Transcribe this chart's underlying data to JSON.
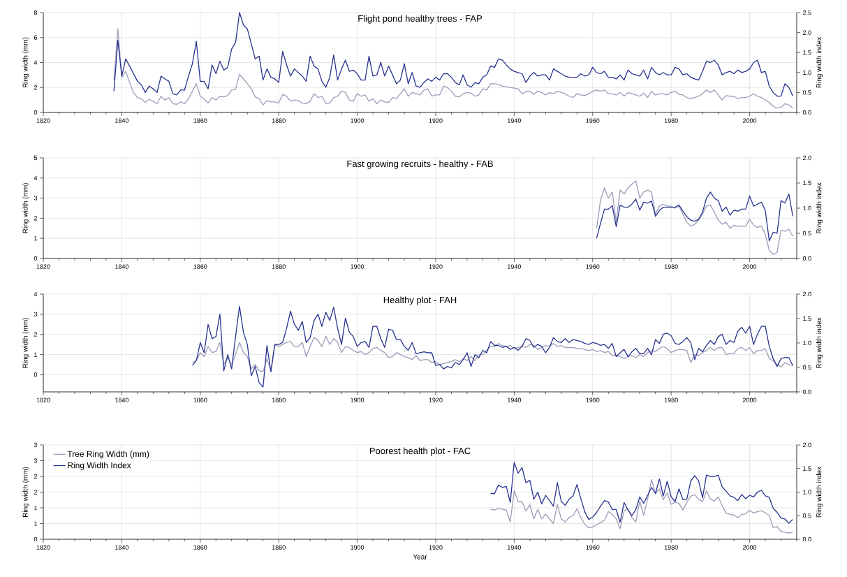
{
  "chart_data": [
    {
      "type": "line",
      "title": "Flight pond healthy trees - FAP",
      "ylabel": "Ring width (mm)",
      "y2label": "Ring width index",
      "grid": true,
      "xlim": [
        1820,
        2012
      ],
      "ylim": [
        0,
        8
      ],
      "y2lim": [
        0,
        2.5
      ],
      "xticks": [
        1820,
        {
          "value": 1824,
          "label": null
        },
        {
          "value": 1828,
          "label": null
        },
        {
          "value": 1832,
          "label": null
        },
        {
          "value": 1836,
          "label": null
        },
        1840,
        {
          "value": 1844,
          "label": null
        },
        {
          "value": 1848,
          "label": null
        },
        {
          "value": 1852,
          "label": null
        },
        {
          "value": 1856,
          "label": null
        },
        1860,
        {
          "value": 1864,
          "label": null
        },
        {
          "value": 1868,
          "label": null
        },
        {
          "value": 1872,
          "label": null
        },
        {
          "value": 1876,
          "label": null
        },
        1880,
        {
          "value": 1884,
          "label": null
        },
        {
          "value": 1888,
          "label": null
        },
        {
          "value": 1892,
          "label": null
        },
        {
          "value": 1896,
          "label": null
        },
        1900,
        {
          "value": 1904,
          "label": null
        },
        {
          "value": 1908,
          "label": null
        },
        {
          "value": 1912,
          "label": null
        },
        {
          "value": 1916,
          "label": null
        },
        1920,
        {
          "value": 1924,
          "label": null
        },
        {
          "value": 1928,
          "label": null
        },
        {
          "value": 1932,
          "label": null
        },
        {
          "value": 1936,
          "label": null
        },
        1940,
        {
          "value": 1944,
          "label": null
        },
        {
          "value": 1948,
          "label": null
        },
        {
          "value": 1952,
          "label": null
        },
        {
          "value": 1956,
          "label": null
        },
        1960,
        {
          "value": 1964,
          "label": null
        },
        {
          "value": 1968,
          "label": null
        },
        {
          "value": 1972,
          "label": null
        },
        {
          "value": 1976,
          "label": null
        },
        1980,
        {
          "value": 1984,
          "label": null
        },
        {
          "value": 1988,
          "label": null
        },
        {
          "value": 1992,
          "label": null
        },
        {
          "value": 1996,
          "label": null
        },
        2000,
        {
          "value": 2004,
          "label": null
        },
        {
          "value": 2008,
          "label": null
        },
        {
          "value": 2012,
          "label": null
        }
      ],
      "yticks": [
        0,
        2,
        4,
        6,
        8
      ],
      "y2ticks": [
        {
          "value": 0,
          "label": "0.0"
        },
        {
          "value": 0.5,
          "label": "0.5"
        },
        {
          "value": 1,
          "label": "1.0"
        },
        {
          "value": 1.5,
          "label": "1.5"
        },
        {
          "value": 2,
          "label": "2.0"
        },
        {
          "value": 2.5,
          "label": "2.5"
        }
      ],
      "x": [
        1838,
        1839,
        1840,
        1841,
        1842,
        1843,
        1844,
        1845,
        1846,
        1847,
        1848,
        1849,
        1850,
        1851,
        1852,
        1853,
        1854,
        1855,
        1856,
        1857,
        1858,
        1859,
        1860,
        1861,
        1862,
        1863,
        1864,
        1865,
        1866,
        1867,
        1868,
        1869,
        1870,
        1871,
        1872,
        1873,
        1874,
        1875,
        1876,
        1877,
        1878,
        1879,
        1880,
        1881,
        1882,
        1883,
        1884,
        1885,
        1886,
        1887,
        1888,
        1889,
        1890,
        1891,
        1892,
        1893,
        1894,
        1895,
        1896,
        1897,
        1898,
        1899,
        1900,
        1901,
        1902,
        1903,
        1904,
        1905,
        1906,
        1907,
        1908,
        1909,
        1910,
        1911,
        1912,
        1913,
        1914,
        1915,
        1916,
        1917,
        1918,
        1919,
        1920,
        1921,
        1922,
        1923,
        1924,
        1925,
        1926,
        1927,
        1928,
        1929,
        1930,
        1931,
        1932,
        1933,
        1934,
        1935,
        1936,
        1937,
        1938,
        1939,
        1940,
        1941,
        1942,
        1943,
        1944,
        1945,
        1946,
        1947,
        1948,
        1949,
        1950,
        1951,
        1952,
        1953,
        1954,
        1955,
        1956,
        1957,
        1958,
        1959,
        1960,
        1961,
        1962,
        1963,
        1964,
        1965,
        1966,
        1967,
        1968,
        1969,
        1970,
        1971,
        1972,
        1973,
        1974,
        1975,
        1976,
        1977,
        1978,
        1979,
        1980,
        1981,
        1982,
        1983,
        1984,
        1985,
        1986,
        1987,
        1988,
        1989,
        1990,
        1991,
        1992,
        1993,
        1994,
        1995,
        1996,
        1997,
        1998,
        1999,
        2000,
        2001,
        2002,
        2003,
        2004,
        2005,
        2006,
        2007,
        2008,
        2009,
        2010,
        2011
      ],
      "series": [
        {
          "color": "#9e9bb9",
          "values": [
            2.6,
            6.7,
            2.8,
            3.3,
            2.4,
            1.6,
            1.2,
            1.1,
            0.8,
            1.05,
            0.9,
            0.7,
            1.3,
            1.0,
            1.2,
            0.7,
            0.65,
            0.85,
            0.7,
            1.1,
            1.7,
            2.3,
            1.3,
            1.1,
            0.75,
            1.2,
            1.0,
            1.3,
            1.25,
            1.35,
            1.8,
            1.85,
            3.05,
            2.7,
            2.3,
            1.9,
            1.25,
            1.1,
            0.6,
            0.95,
            0.85,
            0.85,
            0.75,
            1.45,
            1.3,
            0.9,
            1.0,
            0.95,
            0.75,
            0.7,
            0.9,
            1.5,
            1.2,
            1.3,
            0.7,
            0.75,
            1.2,
            1.3,
            1.7,
            1.6,
            1.0,
            0.9,
            1.5,
            1.3,
            1.4,
            0.9,
            1.1,
            0.7,
            1.0,
            0.85,
            0.8,
            1.2,
            1.1,
            1.5,
            1.9,
            1.3,
            1.6,
            1.5,
            1.4,
            1.8,
            1.9,
            1.3,
            1.4,
            1.4,
            2.1,
            2.0,
            1.7,
            1.3,
            1.25,
            1.5,
            1.6,
            1.55,
            1.3,
            1.4,
            1.9,
            1.8,
            2.3,
            2.3,
            2.25,
            2.1,
            2.05,
            2.0,
            1.95,
            1.9,
            1.5,
            1.65,
            1.7,
            1.45,
            1.7,
            1.6,
            1.4,
            1.6,
            1.5,
            1.7,
            1.6,
            1.5,
            1.3,
            1.2,
            1.5,
            1.4,
            1.35,
            1.5,
            1.7,
            1.8,
            1.7,
            1.8,
            1.5,
            1.5,
            1.4,
            1.6,
            1.3,
            1.6,
            1.5,
            1.4,
            1.3,
            1.55,
            1.2,
            1.7,
            1.4,
            1.5,
            1.5,
            1.4,
            1.6,
            1.7,
            1.45,
            1.4,
            1.2,
            1.1,
            1.2,
            1.3,
            1.5,
            1.8,
            1.6,
            1.8,
            1.4,
            1.0,
            1.35,
            1.3,
            1.3,
            1.1,
            1.2,
            1.2,
            1.3,
            1.5,
            1.3,
            1.2,
            1.0,
            0.8,
            0.5,
            0.35,
            0.4,
            0.7,
            0.6,
            0.35
          ]
        },
        {
          "color": "#27338f",
          "axis": "y2",
          "values": [
            0.53,
            1.81,
            0.91,
            1.34,
            1.16,
            0.97,
            0.78,
            0.69,
            0.5,
            0.66,
            0.59,
            0.5,
            0.91,
            0.84,
            0.78,
            0.47,
            0.44,
            0.56,
            0.56,
            0.91,
            1.22,
            1.78,
            0.78,
            0.78,
            0.59,
            1.19,
            0.97,
            1.28,
            1.06,
            1.13,
            1.59,
            1.75,
            2.5,
            2.19,
            2.09,
            1.72,
            1.34,
            1.41,
            0.81,
            1.09,
            0.88,
            0.84,
            0.75,
            1.53,
            1.19,
            0.91,
            1.09,
            1.0,
            0.91,
            0.78,
            1.41,
            1.16,
            1.09,
            0.78,
            0.63,
            0.88,
            1.44,
            0.81,
            1.09,
            1.31,
            1.03,
            1.06,
            0.97,
            0.81,
            0.81,
            1.41,
            0.91,
            0.94,
            1.25,
            0.91,
            1.16,
            0.94,
            0.72,
            0.81,
            1.22,
            0.72,
            1.0,
            0.66,
            0.63,
            0.75,
            0.84,
            0.78,
            0.88,
            0.81,
            0.97,
            0.97,
            0.88,
            0.75,
            0.69,
            0.94,
            0.69,
            0.63,
            0.75,
            0.72,
            0.88,
            0.94,
            1.16,
            1.13,
            1.34,
            1.31,
            1.19,
            1.09,
            1.03,
            1.0,
            0.97,
            0.75,
            0.91,
            1.0,
            0.91,
            0.94,
            0.94,
            0.81,
            1.09,
            1.03,
            0.97,
            0.91,
            0.88,
            0.88,
            0.88,
            0.97,
            0.91,
            0.94,
            1.13,
            1.0,
            0.97,
            1.03,
            0.88,
            0.88,
            0.84,
            0.94,
            0.81,
            1.06,
            0.97,
            0.94,
            0.91,
            1.06,
            0.84,
            1.13,
            1.0,
            0.94,
            1.0,
            0.94,
            0.94,
            1.13,
            1.09,
            0.94,
            0.97,
            0.88,
            0.84,
            0.81,
            1.03,
            1.28,
            1.25,
            1.31,
            1.19,
            0.94,
            1.0,
            1.03,
            0.97,
            1.06,
            1.0,
            1.03,
            1.09,
            1.25,
            1.31,
            1.0,
            1.03,
            0.66,
            0.5,
            0.41,
            0.41,
            0.72,
            0.63,
            0.41
          ]
        }
      ]
    },
    {
      "type": "line",
      "title": "Fast growing recruits - healthy - FAB",
      "ylabel": "Ring width (mm)",
      "y2label": "Ring width index",
      "grid": true,
      "xlim": [
        1820,
        2012
      ],
      "ylim": [
        0,
        5
      ],
      "y2lim": [
        0,
        2
      ],
      "xticks": [
        1820,
        {
          "value": 1824,
          "label": null
        },
        {
          "value": 1828,
          "label": null
        },
        {
          "value": 1832,
          "label": null
        },
        {
          "value": 1836,
          "label": null
        },
        1840,
        {
          "value": 1844,
          "label": null
        },
        {
          "value": 1848,
          "label": null
        },
        {
          "value": 1852,
          "label": null
        },
        {
          "value": 1856,
          "label": null
        },
        1860,
        {
          "value": 1864,
          "label": null
        },
        {
          "value": 1868,
          "label": null
        },
        {
          "value": 1872,
          "label": null
        },
        {
          "value": 1876,
          "label": null
        },
        1880,
        {
          "value": 1884,
          "label": null
        },
        {
          "value": 1888,
          "label": null
        },
        {
          "value": 1892,
          "label": null
        },
        {
          "value": 1896,
          "label": null
        },
        1900,
        {
          "value": 1904,
          "label": null
        },
        {
          "value": 1908,
          "label": null
        },
        {
          "value": 1912,
          "label": null
        },
        {
          "value": 1916,
          "label": null
        },
        1920,
        {
          "value": 1924,
          "label": null
        },
        {
          "value": 1928,
          "label": null
        },
        {
          "value": 1932,
          "label": null
        },
        {
          "value": 1936,
          "label": null
        },
        1940,
        {
          "value": 1944,
          "label": null
        },
        {
          "value": 1948,
          "label": null
        },
        {
          "value": 1952,
          "label": null
        },
        {
          "value": 1956,
          "label": null
        },
        1960,
        {
          "value": 1964,
          "label": null
        },
        {
          "value": 1968,
          "label": null
        },
        {
          "value": 1972,
          "label": null
        },
        {
          "value": 1976,
          "label": null
        },
        1980,
        {
          "value": 1984,
          "label": null
        },
        {
          "value": 1988,
          "label": null
        },
        {
          "value": 1992,
          "label": null
        },
        {
          "value": 1996,
          "label": null
        },
        2000,
        {
          "value": 2004,
          "label": null
        },
        {
          "value": 2008,
          "label": null
        },
        {
          "value": 2012,
          "label": null
        }
      ],
      "yticks": [
        0,
        1,
        2,
        3,
        4,
        5
      ],
      "y2ticks": [
        {
          "value": 0,
          "label": "0.0"
        },
        {
          "value": 0.5,
          "label": "0.5"
        },
        {
          "value": 1,
          "label": "1.0"
        },
        {
          "value": 1.5,
          "label": "1.5"
        },
        {
          "value": 2,
          "label": "2.0"
        }
      ],
      "x": [
        1961,
        1962,
        1963,
        1964,
        1965,
        1966,
        1967,
        1968,
        1969,
        1970,
        1971,
        1972,
        1973,
        1974,
        1975,
        1976,
        1977,
        1978,
        1979,
        1980,
        1981,
        1982,
        1983,
        1984,
        1985,
        1986,
        1987,
        1988,
        1989,
        1990,
        1991,
        1992,
        1993,
        1994,
        1995,
        1996,
        1997,
        1998,
        1999,
        2000,
        2001,
        2002,
        2003,
        2004,
        2005,
        2006,
        2007,
        2008,
        2009,
        2010,
        2011
      ],
      "series": [
        {
          "color": "#9e9bb9",
          "values": [
            1.5,
            2.9,
            3.5,
            3.0,
            3.3,
            1.8,
            3.4,
            3.2,
            3.5,
            3.7,
            3.85,
            3.0,
            3.3,
            3.4,
            3.3,
            2.2,
            2.6,
            2.7,
            2.6,
            2.6,
            2.5,
            2.6,
            2.2,
            1.8,
            1.6,
            1.7,
            1.9,
            2.2,
            2.6,
            2.65,
            2.3,
            1.9,
            1.7,
            1.8,
            1.5,
            1.65,
            1.6,
            1.6,
            1.6,
            1.95,
            1.65,
            1.55,
            1.6,
            1.2,
            0.4,
            0.2,
            0.3,
            1.4,
            1.35,
            1.45,
            1.1
          ]
        },
        {
          "color": "#27338f",
          "axis": "y2",
          "values": [
            0.4,
            0.7,
            0.98,
            0.98,
            1.05,
            0.63,
            1.06,
            1.02,
            1.02,
            1.08,
            1.18,
            0.96,
            1.12,
            1.1,
            1.14,
            0.84,
            0.95,
            1.02,
            1.02,
            1.02,
            1.02,
            1.06,
            0.94,
            0.83,
            0.76,
            0.74,
            0.78,
            0.92,
            1.2,
            1.32,
            1.2,
            1.15,
            0.94,
            1.02,
            0.86,
            0.96,
            0.94,
            0.98,
            0.98,
            1.24,
            1.04,
            1.08,
            1.12,
            0.95,
            0.35,
            0.52,
            0.5,
            1.15,
            1.1,
            1.28,
            0.84
          ]
        }
      ]
    },
    {
      "type": "line",
      "title": "Healthy plot - FAH",
      "ylabel": "Ring width (mm)",
      "y2label": "Ring width index",
      "grid": true,
      "xlim": [
        1820,
        2012
      ],
      "ylim": [
        -0.85,
        4
      ],
      "y2lim": [
        0,
        2
      ],
      "xticks": [
        1820,
        {
          "value": 1824,
          "label": null
        },
        {
          "value": 1828,
          "label": null
        },
        {
          "value": 1832,
          "label": null
        },
        {
          "value": 1836,
          "label": null
        },
        1840,
        {
          "value": 1844,
          "label": null
        },
        {
          "value": 1848,
          "label": null
        },
        {
          "value": 1852,
          "label": null
        },
        {
          "value": 1856,
          "label": null
        },
        1860,
        {
          "value": 1864,
          "label": null
        },
        {
          "value": 1868,
          "label": null
        },
        {
          "value": 1872,
          "label": null
        },
        {
          "value": 1876,
          "label": null
        },
        1880,
        {
          "value": 1884,
          "label": null
        },
        {
          "value": 1888,
          "label": null
        },
        {
          "value": 1892,
          "label": null
        },
        {
          "value": 1896,
          "label": null
        },
        1900,
        {
          "value": 1904,
          "label": null
        },
        {
          "value": 1908,
          "label": null
        },
        {
          "value": 1912,
          "label": null
        },
        {
          "value": 1916,
          "label": null
        },
        1920,
        {
          "value": 1924,
          "label": null
        },
        {
          "value": 1928,
          "label": null
        },
        {
          "value": 1932,
          "label": null
        },
        {
          "value": 1936,
          "label": null
        },
        1940,
        {
          "value": 1944,
          "label": null
        },
        {
          "value": 1948,
          "label": null
        },
        {
          "value": 1952,
          "label": null
        },
        {
          "value": 1956,
          "label": null
        },
        1960,
        {
          "value": 1964,
          "label": null
        },
        {
          "value": 1968,
          "label": null
        },
        {
          "value": 1972,
          "label": null
        },
        {
          "value": 1976,
          "label": null
        },
        1980,
        {
          "value": 1984,
          "label": null
        },
        {
          "value": 1988,
          "label": null
        },
        {
          "value": 1992,
          "label": null
        },
        {
          "value": 1996,
          "label": null
        },
        2000,
        {
          "value": 2004,
          "label": null
        },
        {
          "value": 2008,
          "label": null
        },
        {
          "value": 2012,
          "label": null
        }
      ],
      "yticks": [
        0,
        1,
        2,
        3,
        4
      ],
      "y2ticks": [
        {
          "value": 0,
          "label": "0.0"
        },
        {
          "value": 0.5,
          "label": "0.5"
        },
        {
          "value": 1,
          "label": "1.0"
        },
        {
          "value": 1.5,
          "label": "1.5"
        },
        {
          "value": 2,
          "label": "2.0"
        }
      ],
      "x": [
        1858,
        1859,
        1860,
        1861,
        1862,
        1863,
        1864,
        1865,
        1866,
        1867,
        1868,
        1869,
        1870,
        1871,
        1872,
        1873,
        1874,
        1875,
        1876,
        1877,
        1878,
        1879,
        1880,
        1881,
        1882,
        1883,
        1884,
        1885,
        1886,
        1887,
        1888,
        1889,
        1890,
        1891,
        1892,
        1893,
        1894,
        1895,
        1896,
        1897,
        1898,
        1899,
        1900,
        1901,
        1902,
        1903,
        1904,
        1905,
        1906,
        1907,
        1908,
        1909,
        1910,
        1911,
        1912,
        1913,
        1914,
        1915,
        1916,
        1917,
        1918,
        1919,
        1920,
        1921,
        1922,
        1923,
        1924,
        1925,
        1926,
        1927,
        1928,
        1929,
        1930,
        1931,
        1932,
        1933,
        1934,
        1935,
        1936,
        1937,
        1938,
        1939,
        1940,
        1941,
        1942,
        1943,
        1944,
        1945,
        1946,
        1947,
        1948,
        1949,
        1950,
        1951,
        1952,
        1953,
        1954,
        1955,
        1956,
        1957,
        1958,
        1959,
        1960,
        1961,
        1962,
        1963,
        1964,
        1965,
        1966,
        1967,
        1968,
        1969,
        1970,
        1971,
        1972,
        1973,
        1974,
        1975,
        1976,
        1977,
        1978,
        1979,
        1980,
        1981,
        1982,
        1983,
        1984,
        1985,
        1986,
        1987,
        1988,
        1989,
        1990,
        1991,
        1992,
        1993,
        1994,
        1995,
        1996,
        1997,
        1998,
        1999,
        2000,
        2001,
        2002,
        2003,
        2004,
        2005,
        2006,
        2007,
        2008,
        2009,
        2010,
        2011
      ],
      "series": [
        {
          "color": "#9e9bb9",
          "values": [
            0.6,
            0.7,
            1.1,
            0.9,
            1.4,
            1.1,
            1.15,
            1.6,
            0.5,
            0.85,
            0.5,
            1.0,
            1.6,
            1.1,
            0.9,
            0.3,
            0.5,
            0.2,
            0.15,
            0.8,
            0.2,
            1.5,
            1.4,
            1.5,
            1.6,
            1.65,
            1.4,
            1.4,
            1.6,
            0.9,
            1.4,
            1.85,
            1.7,
            1.4,
            1.9,
            1.5,
            1.8,
            1.6,
            1.1,
            1.4,
            1.35,
            1.2,
            1.1,
            1.15,
            1.0,
            1.1,
            1.3,
            1.35,
            1.2,
            1.1,
            0.85,
            0.9,
            1.1,
            1.0,
            0.9,
            0.85,
            0.75,
            0.95,
            0.7,
            0.75,
            0.75,
            0.6,
            0.65,
            0.5,
            0.55,
            0.6,
            0.65,
            0.75,
            0.65,
            0.8,
            0.7,
            0.9,
            0.7,
            1.0,
            1.0,
            1.2,
            1.4,
            1.4,
            1.55,
            1.45,
            1.4,
            1.45,
            1.3,
            1.35,
            1.4,
            1.35,
            1.5,
            1.45,
            1.25,
            1.35,
            1.45,
            1.4,
            1.55,
            1.4,
            1.45,
            1.35,
            1.35,
            1.35,
            1.3,
            1.3,
            1.25,
            1.2,
            1.25,
            1.15,
            1.2,
            1.1,
            1.15,
            0.95,
            0.95,
            0.9,
            0.8,
            0.9,
            0.95,
            0.85,
            1.0,
            0.9,
            1.1,
            1.2,
            1.15,
            1.3,
            1.4,
            1.3,
            1.1,
            1.2,
            1.25,
            1.25,
            1.2,
            0.6,
            1.0,
            0.95,
            1.1,
            1.2,
            1.35,
            1.2,
            1.35,
            1.35,
            1.0,
            1.05,
            1.05,
            1.3,
            1.35,
            1.2,
            1.35,
            1.05,
            1.2,
            1.2,
            1.3,
            0.8,
            0.7,
            0.5,
            0.4,
            0.6,
            0.5,
            0.45
          ]
        },
        {
          "color": "#27338f",
          "axis": "y2",
          "values": [
            0.54,
            0.64,
            1.01,
            0.8,
            1.38,
            1.09,
            1.13,
            1.59,
            0.43,
            0.76,
            0.47,
            1.13,
            1.75,
            1.22,
            0.97,
            0.33,
            0.52,
            0.19,
            0.1,
            0.95,
            0.41,
            0.97,
            0.97,
            1.01,
            1.3,
            1.65,
            1.38,
            1.26,
            1.44,
            1.01,
            1.11,
            1.46,
            1.59,
            1.34,
            1.63,
            1.46,
            1.73,
            1.3,
            0.97,
            1.51,
            1.22,
            1.13,
            0.93,
            1.01,
            1.03,
            0.91,
            1.34,
            1.34,
            1.09,
            0.91,
            1.28,
            1.26,
            1.07,
            1.07,
            0.93,
            0.85,
            1.01,
            0.78,
            0.8,
            0.82,
            0.8,
            0.8,
            0.54,
            0.56,
            0.47,
            0.52,
            0.49,
            0.6,
            0.56,
            0.66,
            0.8,
            0.52,
            0.76,
            0.7,
            0.85,
            0.8,
            1.03,
            0.95,
            0.95,
            0.91,
            0.93,
            0.87,
            0.91,
            0.85,
            0.93,
            1.09,
            1.05,
            0.91,
            0.97,
            0.93,
            0.8,
            0.91,
            1.11,
            1.03,
            1.01,
            1.09,
            1.01,
            1.07,
            1.05,
            1.03,
            0.99,
            0.97,
            1.01,
            0.99,
            0.95,
            0.97,
            0.89,
            0.99,
            0.72,
            0.8,
            0.87,
            0.72,
            0.82,
            0.89,
            0.78,
            0.78,
            0.89,
            0.76,
            1.07,
            0.99,
            1.18,
            1.2,
            1.15,
            0.99,
            0.97,
            1.03,
            1.11,
            1.01,
            0.66,
            0.89,
            0.82,
            0.95,
            1.05,
            0.97,
            1.13,
            1.18,
            0.97,
            1.05,
            1.01,
            1.24,
            1.32,
            1.2,
            1.34,
            0.97,
            1.18,
            1.34,
            1.34,
            0.93,
            0.68,
            0.52,
            0.68,
            0.7,
            0.7,
            0.54
          ]
        }
      ]
    },
    {
      "type": "line",
      "title": "Poorest health plot - FAC",
      "xlabel": "Year",
      "ylabel": "Ring width (mm)",
      "y2label": "Ring width index",
      "grid": true,
      "legend": "top left",
      "xlim": [
        1820,
        2012
      ],
      "ylim": [
        0,
        3
      ],
      "y2lim": [
        0,
        2
      ],
      "xticks": [
        1820,
        {
          "value": 1824,
          "label": null
        },
        {
          "value": 1828,
          "label": null
        },
        {
          "value": 1832,
          "label": null
        },
        {
          "value": 1836,
          "label": null
        },
        1840,
        {
          "value": 1844,
          "label": null
        },
        {
          "value": 1848,
          "label": null
        },
        {
          "value": 1852,
          "label": null
        },
        {
          "value": 1856,
          "label": null
        },
        1860,
        {
          "value": 1864,
          "label": null
        },
        {
          "value": 1868,
          "label": null
        },
        {
          "value": 1872,
          "label": null
        },
        {
          "value": 1876,
          "label": null
        },
        1880,
        {
          "value": 1884,
          "label": null
        },
        {
          "value": 1888,
          "label": null
        },
        {
          "value": 1892,
          "label": null
        },
        {
          "value": 1896,
          "label": null
        },
        1900,
        {
          "value": 1904,
          "label": null
        },
        {
          "value": 1908,
          "label": null
        },
        {
          "value": 1912,
          "label": null
        },
        {
          "value": 1916,
          "label": null
        },
        1920,
        {
          "value": 1924,
          "label": null
        },
        {
          "value": 1928,
          "label": null
        },
        {
          "value": 1932,
          "label": null
        },
        {
          "value": 1936,
          "label": null
        },
        1940,
        {
          "value": 1944,
          "label": null
        },
        {
          "value": 1948,
          "label": null
        },
        {
          "value": 1952,
          "label": null
        },
        {
          "value": 1956,
          "label": null
        },
        1960,
        {
          "value": 1964,
          "label": null
        },
        {
          "value": 1968,
          "label": null
        },
        {
          "value": 1972,
          "label": null
        },
        {
          "value": 1976,
          "label": null
        },
        1980,
        {
          "value": 1984,
          "label": null
        },
        {
          "value": 1988,
          "label": null
        },
        {
          "value": 1992,
          "label": null
        },
        {
          "value": 1996,
          "label": null
        },
        2000,
        {
          "value": 2004,
          "label": null
        },
        {
          "value": 2008,
          "label": null
        },
        {
          "value": 2012,
          "label": null
        }
      ],
      "yticks": [
        0,
        {
          "value": 0.5,
          "label": "1"
        },
        1,
        {
          "value": 1.5,
          "label": "2"
        },
        2,
        {
          "value": 2.5,
          "label": "3"
        },
        3
      ],
      "y2ticks": [
        {
          "value": 0,
          "label": "0.0"
        },
        {
          "value": 0.5,
          "label": "0.5"
        },
        {
          "value": 1,
          "label": "1.0"
        },
        {
          "value": 1.5,
          "label": "1.5"
        },
        {
          "value": 2,
          "label": "2.0"
        }
      ],
      "x": [
        1934,
        1935,
        1936,
        1937,
        1938,
        1939,
        1940,
        1941,
        1942,
        1943,
        1944,
        1945,
        1946,
        1947,
        1948,
        1949,
        1950,
        1951,
        1952,
        1953,
        1954,
        1955,
        1956,
        1957,
        1958,
        1959,
        1960,
        1961,
        1962,
        1963,
        1964,
        1965,
        1966,
        1967,
        1968,
        1969,
        1970,
        1971,
        1972,
        1973,
        1974,
        1975,
        1976,
        1977,
        1978,
        1979,
        1980,
        1981,
        1982,
        1983,
        1984,
        1985,
        1986,
        1987,
        1988,
        1989,
        1990,
        1991,
        1992,
        1993,
        1994,
        1995,
        1996,
        1997,
        1998,
        1999,
        2000,
        2001,
        2002,
        2003,
        2004,
        2005,
        2006,
        2007,
        2008,
        2009,
        2010,
        2011
      ],
      "series": [
        {
          "name": "Tree Ring Width (mm)",
          "color": "#9e9bb9",
          "values": [
            0.95,
            0.93,
            0.98,
            0.95,
            0.93,
            0.55,
            1.55,
            1.2,
            1.2,
            0.9,
            1.1,
            0.65,
            0.95,
            0.65,
            0.8,
            0.65,
            0.5,
            1.1,
            0.65,
            0.55,
            0.7,
            0.75,
            0.97,
            0.69,
            0.48,
            0.36,
            0.39,
            0.46,
            0.53,
            0.6,
            0.88,
            0.79,
            0.65,
            0.34,
            0.9,
            0.97,
            0.69,
            0.55,
            1.21,
            0.76,
            1.28,
            1.9,
            1.46,
            1.6,
            1.26,
            1.47,
            1.11,
            1.18,
            1.14,
            0.93,
            1.18,
            1.37,
            1.42,
            1.28,
            1.19,
            1.54,
            1.28,
            1.21,
            1.35,
            1.07,
            0.83,
            0.79,
            0.77,
            0.69,
            0.79,
            0.81,
            0.92,
            0.83,
            0.88,
            0.91,
            0.84,
            0.76,
            0.37,
            0.41,
            0.25,
            0.22,
            0.2,
            0.22
          ]
        },
        {
          "name": "Ring Width Index",
          "color": "#27338f",
          "axis": "y2",
          "values": [
            0.97,
            0.97,
            1.15,
            1.1,
            1.12,
            0.78,
            1.63,
            1.4,
            1.52,
            1.2,
            1.25,
            0.85,
            1.0,
            0.75,
            0.93,
            0.82,
            0.7,
            1.2,
            0.8,
            0.72,
            0.85,
            0.92,
            1.16,
            0.86,
            0.58,
            0.42,
            0.47,
            0.57,
            0.7,
            0.82,
            0.79,
            0.63,
            0.63,
            0.36,
            0.78,
            0.62,
            0.5,
            0.63,
            0.9,
            0.76,
            0.93,
            1.1,
            0.97,
            1.28,
            0.92,
            1.23,
            0.9,
            0.8,
            1.07,
            0.84,
            0.85,
            1.23,
            1.35,
            1.24,
            0.88,
            1.36,
            1.33,
            1.33,
            1.36,
            1.11,
            1.02,
            0.92,
            0.89,
            0.82,
            0.95,
            0.86,
            0.93,
            0.9,
            1.0,
            1.04,
            0.92,
            0.89,
            0.66,
            0.57,
            0.45,
            0.43,
            0.34,
            0.42
          ]
        }
      ]
    }
  ]
}
